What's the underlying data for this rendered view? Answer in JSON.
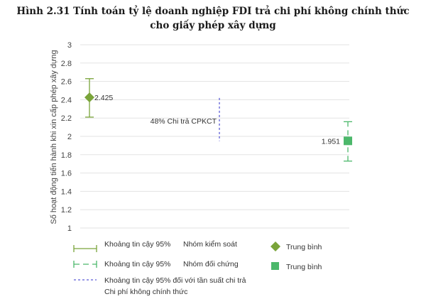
{
  "title_line1": "Hình 2.31 Tính toán tỷ lệ doanh nghiệp FDI trả chi phí không chính thức",
  "title_line2": "cho giấy phép xây dựng",
  "chart_data": {
    "type": "scatter",
    "title": "Hình 2.31 Tính toán tỷ lệ doanh nghiệp FDI trả chi phí không chính thức cho giấy phép xây dựng",
    "ylabel": "Số hoạt động tiến hành khi xin cấp phép xây dựng",
    "xlabel": "",
    "ylim": [
      1,
      3
    ],
    "yticks": [
      "1",
      "1.2",
      "1.4",
      "1.6",
      "1.8",
      "2",
      "2.2",
      "2.4",
      "2.6",
      "2.8",
      "3"
    ],
    "grid": "horizontal",
    "points": [
      {
        "group": "Nhóm kiểm soát",
        "mean": 2.425,
        "label": "2.425",
        "ci_low": 2.21,
        "ci_high": 2.63,
        "marker": "diamond",
        "color": "#7aa43a"
      },
      {
        "group": "Nhóm đối chứng",
        "mean": 1.951,
        "label": "1.951",
        "ci_low": 1.73,
        "ci_high": 2.16,
        "marker": "square",
        "color": "#4cb86b"
      }
    ],
    "informal_payment_interval": {
      "low": 1.95,
      "high": 2.42,
      "label": "48% Chi trả CPKCT",
      "color": "#5b5bd6"
    },
    "legend": {
      "placement": "bottom",
      "ci_label": "Khoảng tin cậy 95%",
      "control_group": "Nhóm kiểm soát",
      "comparison_group": "Nhóm đối chứng",
      "mean_label": "Trung bình",
      "informal_ci_line1": "Khoảng tin cậy 95% đối với tần suất chi trả",
      "informal_ci_line2": "Chi phí không chính thức"
    }
  }
}
